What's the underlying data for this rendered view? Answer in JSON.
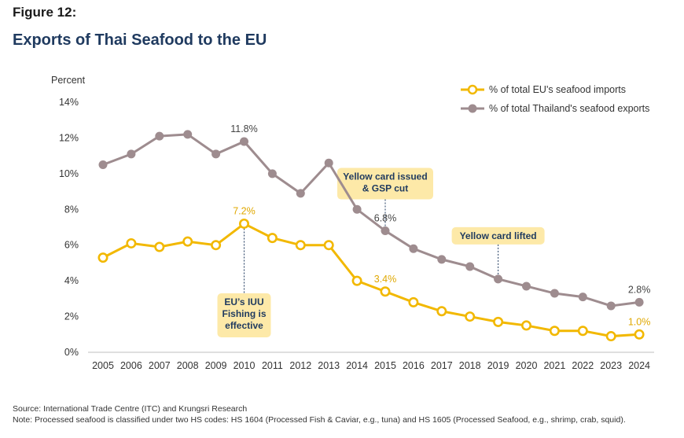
{
  "figure_label": "Figure 12:",
  "title": "Exports of Thai Seafood to the EU",
  "source": "Source: International Trade Centre (ITC) and Krungsri Research",
  "note": "Note: Processed seafood is classified under two HS codes: HS 1604 (Processed Fish & Caviar, e.g., tuna) and HS 1605 (Processed Seafood, e.g., shrimp, crab, squid).",
  "chart_data": {
    "type": "line",
    "ylabel": "Percent",
    "xlabel": "",
    "ylim": [
      0,
      14
    ],
    "y_ticks": [
      0,
      2,
      4,
      6,
      8,
      10,
      12,
      14
    ],
    "y_tick_labels": [
      "0%",
      "2%",
      "4%",
      "6%",
      "8%",
      "10%",
      "12%",
      "14%"
    ],
    "x": [
      "2005",
      "2006",
      "2007",
      "2008",
      "2009",
      "2010",
      "2011",
      "2012",
      "2013",
      "2014",
      "2015",
      "2016",
      "2017",
      "2018",
      "2019",
      "2020",
      "2021",
      "2022",
      "2023",
      "2024"
    ],
    "grid": false,
    "legend_position": "top-right",
    "series": [
      {
        "name": "% of total EU's seafood imports",
        "color": "#f2b800",
        "marker": "hollow-circle",
        "values": [
          5.3,
          6.1,
          5.9,
          6.2,
          6.0,
          7.2,
          6.4,
          6.0,
          6.0,
          4.0,
          3.4,
          2.8,
          2.3,
          2.0,
          1.7,
          1.5,
          1.2,
          1.2,
          0.9,
          1.0
        ]
      },
      {
        "name": "% of total Thailand's seafood exports",
        "color": "#9e8c8f",
        "marker": "filled-circle",
        "values": [
          10.5,
          11.1,
          12.1,
          12.2,
          11.1,
          11.8,
          10.0,
          8.9,
          10.6,
          8.0,
          6.8,
          5.8,
          5.2,
          4.8,
          4.1,
          3.7,
          3.3,
          3.1,
          2.6,
          2.8
        ]
      }
    ],
    "data_labels": [
      {
        "series": 1,
        "x": "2010",
        "text": "11.8%",
        "color": "#444444"
      },
      {
        "series": 1,
        "x": "2015",
        "text": "6.8%",
        "color": "#444444"
      },
      {
        "series": 1,
        "x": "2024",
        "text": "2.8%",
        "color": "#444444"
      },
      {
        "series": 0,
        "x": "2010",
        "text": "7.2%",
        "color": "#e0a800"
      },
      {
        "series": 0,
        "x": "2015",
        "text": "3.4%",
        "color": "#e0a800"
      },
      {
        "series": 0,
        "x": "2024",
        "text": "1.0%",
        "color": "#e0a800"
      }
    ],
    "annotations": [
      {
        "x": "2010",
        "series": 0,
        "lines": [
          "EU’s IUU",
          "Fishing is",
          "effective"
        ],
        "position": "below"
      },
      {
        "x": "2015",
        "series": 1,
        "lines": [
          "Yellow card issued",
          "& GSP cut"
        ],
        "position": "above"
      },
      {
        "x": "2019",
        "series": 1,
        "lines": [
          "Yellow card lifted"
        ],
        "position": "above"
      }
    ]
  }
}
